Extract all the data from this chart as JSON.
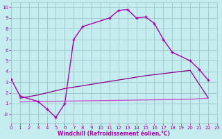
{
  "bg_color": "#c5ecee",
  "grid_color": "#a0cdd0",
  "xlim": [
    0,
    23
  ],
  "ylim": [
    -0.8,
    10.5
  ],
  "xticks": [
    0,
    1,
    2,
    3,
    4,
    5,
    6,
    7,
    8,
    9,
    10,
    11,
    12,
    13,
    14,
    15,
    16,
    17,
    18,
    19,
    20,
    21,
    22,
    23
  ],
  "yticks": [
    0,
    1,
    2,
    3,
    4,
    5,
    6,
    7,
    8,
    9,
    10
  ],
  "ytick_labels": [
    "-0",
    "1",
    "2",
    "3",
    "4",
    "5",
    "6",
    "7",
    "8",
    "9",
    "10"
  ],
  "xlabel": "Windchill (Refroidissement éolien,°C)",
  "curve1_color": "#aa00aa",
  "curve1_x": [
    0,
    1,
    3,
    4,
    5,
    6,
    7,
    8,
    11,
    12,
    13,
    14,
    15,
    16,
    17,
    18,
    20,
    21,
    22
  ],
  "curve1_y": [
    3.3,
    1.7,
    1.2,
    0.5,
    -0.3,
    1.0,
    7.0,
    8.2,
    9.0,
    9.7,
    9.8,
    9.0,
    9.1,
    8.5,
    7.0,
    5.8,
    5.0,
    4.2,
    3.2
  ],
  "curve2_color": "#880088",
  "curve2_x": [
    1,
    3,
    4,
    5,
    6,
    9,
    12,
    15,
    18,
    20,
    22
  ],
  "curve2_y": [
    1.5,
    1.8,
    2.0,
    2.2,
    2.4,
    2.8,
    3.2,
    3.6,
    3.9,
    4.1,
    1.55
  ],
  "curve3_color": "#cc44cc",
  "curve3_x": [
    1,
    4,
    8,
    12,
    16,
    20,
    22
  ],
  "curve3_y": [
    1.15,
    1.2,
    1.25,
    1.3,
    1.35,
    1.4,
    1.5
  ]
}
